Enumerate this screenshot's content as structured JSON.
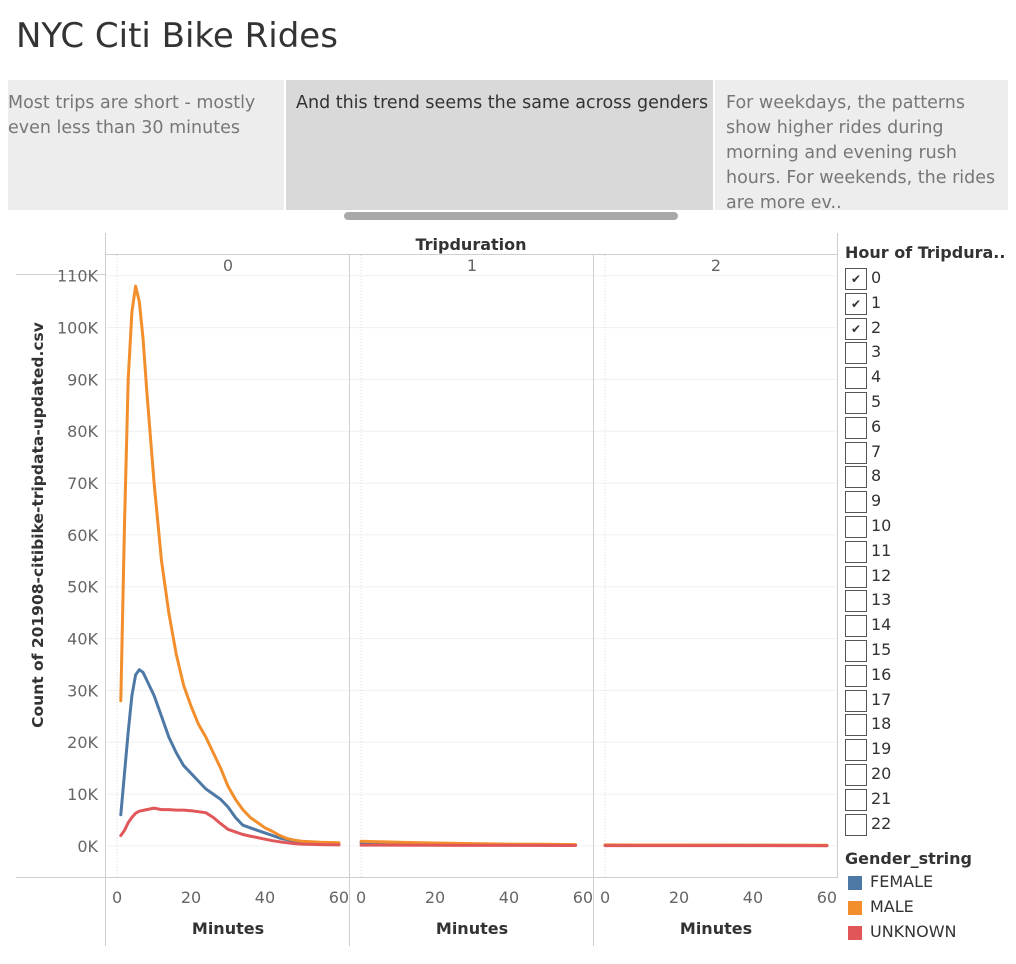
{
  "page": {
    "title": "NYC Citi Bike Rides"
  },
  "story_points": [
    {
      "text": "Most trips are short - mostly even less than 30 minutes"
    },
    {
      "text": "And this trend seems the same across genders"
    },
    {
      "text": "For weekdays, the patterns show higher rides during morning and evening rush hours. For weekends, the rides are more ev.."
    }
  ],
  "hour_filter": {
    "title": "Hour of Tripdura..",
    "items": [
      {
        "label": "0",
        "checked": true
      },
      {
        "label": "1",
        "checked": true
      },
      {
        "label": "2",
        "checked": true
      },
      {
        "label": "3",
        "checked": false
      },
      {
        "label": "4",
        "checked": false
      },
      {
        "label": "5",
        "checked": false
      },
      {
        "label": "6",
        "checked": false
      },
      {
        "label": "7",
        "checked": false
      },
      {
        "label": "8",
        "checked": false
      },
      {
        "label": "9",
        "checked": false
      },
      {
        "label": "10",
        "checked": false
      },
      {
        "label": "11",
        "checked": false
      },
      {
        "label": "12",
        "checked": false
      },
      {
        "label": "13",
        "checked": false
      },
      {
        "label": "14",
        "checked": false
      },
      {
        "label": "15",
        "checked": false
      },
      {
        "label": "16",
        "checked": false
      },
      {
        "label": "17",
        "checked": false
      },
      {
        "label": "18",
        "checked": false
      },
      {
        "label": "19",
        "checked": false
      },
      {
        "label": "20",
        "checked": false
      },
      {
        "label": "21",
        "checked": false
      },
      {
        "label": "22",
        "checked": false
      }
    ]
  },
  "chart_data": {
    "type": "line",
    "column_header": "Tripduration",
    "panels": [
      "0",
      "1",
      "2"
    ],
    "xlabel": "Minutes",
    "ylabel": "Count of 201908-citibike-tripdata-updated.csv",
    "xticks": [
      0,
      20,
      40,
      60
    ],
    "xlim": [
      -3,
      63
    ],
    "yticks": [
      0,
      10000,
      20000,
      30000,
      40000,
      50000,
      60000,
      70000,
      80000,
      90000,
      100000,
      110000
    ],
    "ytick_labels": [
      "0K",
      "10K",
      "20K",
      "30K",
      "40K",
      "50K",
      "60K",
      "70K",
      "80K",
      "90K",
      "100K",
      "110K"
    ],
    "ylim": [
      -6000,
      114000
    ],
    "legend": {
      "title": "Gender_string",
      "position": "right"
    },
    "series": [
      {
        "name": "FEMALE",
        "color": "#4e79a7",
        "panels": [
          [
            [
              1,
              6000
            ],
            [
              2,
              14000
            ],
            [
              3,
              22000
            ],
            [
              4,
              29000
            ],
            [
              5,
              33000
            ],
            [
              6,
              34000
            ],
            [
              7,
              33500
            ],
            [
              8,
              32000
            ],
            [
              10,
              29000
            ],
            [
              12,
              25000
            ],
            [
              14,
              21000
            ],
            [
              16,
              18000
            ],
            [
              18,
              15500
            ],
            [
              20,
              14000
            ],
            [
              22,
              12500
            ],
            [
              24,
              11000
            ],
            [
              26,
              10000
            ],
            [
              28,
              9000
            ],
            [
              30,
              7500
            ],
            [
              32,
              5500
            ],
            [
              34,
              4000
            ],
            [
              36,
              3500
            ],
            [
              38,
              3000
            ],
            [
              40,
              2500
            ],
            [
              42,
              2000
            ],
            [
              44,
              1500
            ],
            [
              46,
              1200
            ],
            [
              48,
              900
            ],
            [
              50,
              700
            ],
            [
              55,
              400
            ],
            [
              60,
              250
            ]
          ],
          [
            [
              0,
              600
            ],
            [
              10,
              450
            ],
            [
              20,
              350
            ],
            [
              30,
              300
            ],
            [
              40,
              250
            ],
            [
              50,
              200
            ],
            [
              58,
              150
            ]
          ],
          [
            [
              0,
              150
            ],
            [
              20,
              120
            ],
            [
              40,
              100
            ],
            [
              60,
              80
            ]
          ]
        ]
      },
      {
        "name": "MALE",
        "color": "#f28e2b",
        "panels": [
          [
            [
              1,
              28000
            ],
            [
              2,
              62000
            ],
            [
              3,
              90000
            ],
            [
              4,
              103000
            ],
            [
              5,
              108000
            ],
            [
              6,
              105000
            ],
            [
              7,
              98000
            ],
            [
              8,
              88000
            ],
            [
              10,
              70000
            ],
            [
              12,
              55000
            ],
            [
              14,
              45000
            ],
            [
              16,
              37000
            ],
            [
              18,
              31000
            ],
            [
              20,
              27000
            ],
            [
              22,
              23500
            ],
            [
              24,
              21000
            ],
            [
              26,
              18000
            ],
            [
              28,
              15000
            ],
            [
              30,
              11500
            ],
            [
              32,
              9000
            ],
            [
              34,
              7000
            ],
            [
              36,
              5500
            ],
            [
              38,
              4500
            ],
            [
              40,
              3500
            ],
            [
              42,
              2800
            ],
            [
              44,
              2000
            ],
            [
              46,
              1400
            ],
            [
              48,
              1100
            ],
            [
              50,
              900
            ],
            [
              55,
              700
            ],
            [
              60,
              600
            ]
          ],
          [
            [
              0,
              900
            ],
            [
              10,
              700
            ],
            [
              20,
              550
            ],
            [
              30,
              450
            ],
            [
              40,
              350
            ],
            [
              50,
              300
            ],
            [
              58,
              250
            ]
          ],
          [
            [
              0,
              200
            ],
            [
              20,
              180
            ],
            [
              40,
              150
            ],
            [
              60,
              120
            ]
          ]
        ]
      },
      {
        "name": "UNKNOWN",
        "color": "#e15759",
        "panels": [
          [
            [
              1,
              2000
            ],
            [
              2,
              3000
            ],
            [
              3,
              4500
            ],
            [
              4,
              5500
            ],
            [
              5,
              6300
            ],
            [
              6,
              6700
            ],
            [
              8,
              7000
            ],
            [
              10,
              7300
            ],
            [
              12,
              7000
            ],
            [
              14,
              7000
            ],
            [
              16,
              6900
            ],
            [
              18,
              6900
            ],
            [
              20,
              6800
            ],
            [
              22,
              6600
            ],
            [
              24,
              6400
            ],
            [
              26,
              5500
            ],
            [
              28,
              4300
            ],
            [
              30,
              3200
            ],
            [
              32,
              2700
            ],
            [
              34,
              2200
            ],
            [
              36,
              1900
            ],
            [
              38,
              1600
            ],
            [
              40,
              1300
            ],
            [
              42,
              1000
            ],
            [
              44,
              800
            ],
            [
              46,
              600
            ],
            [
              48,
              450
            ],
            [
              50,
              350
            ],
            [
              55,
              250
            ],
            [
              60,
              200
            ]
          ],
          [
            [
              0,
              150
            ],
            [
              30,
              100
            ],
            [
              58,
              80
            ]
          ],
          [
            [
              0,
              60
            ],
            [
              30,
              50
            ],
            [
              60,
              40
            ]
          ]
        ]
      }
    ]
  }
}
